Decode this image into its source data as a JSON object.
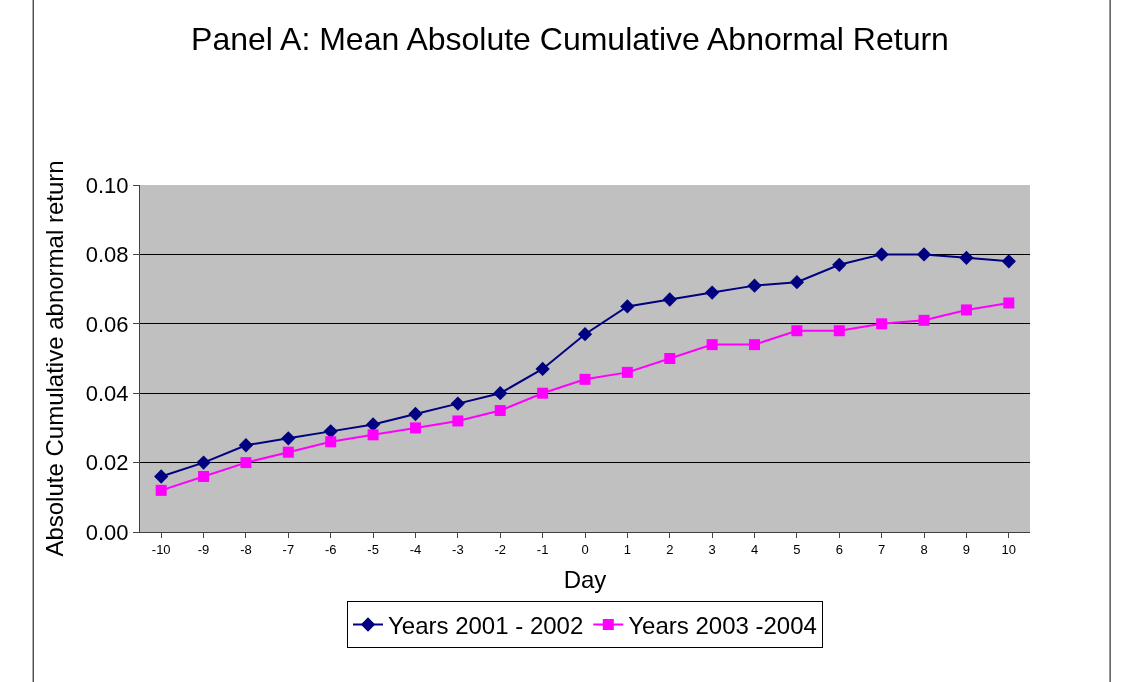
{
  "chart_data": {
    "type": "line",
    "title": "Panel A: Mean Absolute Cumulative Abnormal Return",
    "xlabel": "Day",
    "ylabel": "Absolute Cumulative abnormal return",
    "categories": [
      "-10",
      "-9",
      "-8",
      "-7",
      "-6",
      "-5",
      "-4",
      "-3",
      "-2",
      "-1",
      "0",
      "1",
      "2",
      "3",
      "4",
      "5",
      "6",
      "7",
      "8",
      "9",
      "10"
    ],
    "series": [
      {
        "name": "Years 2001 - 2002",
        "color": "#000080",
        "marker": "diamond",
        "values": [
          0.016,
          0.02,
          0.025,
          0.027,
          0.029,
          0.031,
          0.034,
          0.037,
          0.04,
          0.047,
          0.057,
          0.065,
          0.067,
          0.069,
          0.071,
          0.072,
          0.077,
          0.08,
          0.08,
          0.079,
          0.078
        ]
      },
      {
        "name": "Years 2003 -2004",
        "color": "#ff00ff",
        "marker": "square",
        "values": [
          0.012,
          0.016,
          0.02,
          0.023,
          0.026,
          0.028,
          0.03,
          0.032,
          0.035,
          0.04,
          0.044,
          0.046,
          0.05,
          0.054,
          0.054,
          0.058,
          0.058,
          0.06,
          0.061,
          0.064,
          0.066
        ]
      }
    ],
    "ylim": [
      0,
      0.1
    ],
    "yticks": [
      {
        "value": 0,
        "label": "0.00"
      },
      {
        "value": 0.02,
        "label": "0.02"
      },
      {
        "value": 0.04,
        "label": "0.04"
      },
      {
        "value": 0.06,
        "label": "0.06"
      },
      {
        "value": 0.08,
        "label": "0.08"
      },
      {
        "value": 0.1,
        "label": "0.10"
      }
    ],
    "grid": "y",
    "legend": "bottom",
    "line_style": "solid"
  }
}
